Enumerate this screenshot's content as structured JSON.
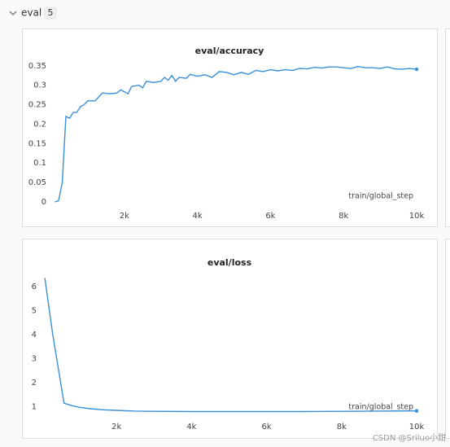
{
  "header": {
    "title": "eval",
    "count": 5
  },
  "watermark": "CSDN @Sriluo小甜",
  "chart_data": [
    {
      "type": "line",
      "title": "eval/accuracy",
      "x_label": "train/global_step",
      "color": "#3a8fd9",
      "grid": false,
      "x": [
        100,
        200,
        300,
        400,
        500,
        600,
        700,
        800,
        900,
        1000,
        1100,
        1200,
        1300,
        1400,
        1600,
        1800,
        1900,
        2100,
        2200,
        2400,
        2500,
        2600,
        2800,
        3000,
        3100,
        3200,
        3300,
        3400,
        3500,
        3700,
        3800,
        4000,
        4200,
        4400,
        4600,
        4800,
        5000,
        5200,
        5400,
        5600,
        5800,
        6000,
        6200,
        6400,
        6600,
        6800,
        7000,
        7200,
        7400,
        7600,
        7800,
        8000,
        8200,
        8400,
        8600,
        8800,
        9000,
        9200,
        9400,
        9600,
        9800,
        10000
      ],
      "values": [
        0,
        0.003,
        0.05,
        0.22,
        0.215,
        0.23,
        0.23,
        0.245,
        0.25,
        0.26,
        0.26,
        0.26,
        0.27,
        0.28,
        0.278,
        0.28,
        0.288,
        0.278,
        0.297,
        0.3,
        0.293,
        0.31,
        0.307,
        0.31,
        0.32,
        0.313,
        0.325,
        0.31,
        0.32,
        0.318,
        0.328,
        0.323,
        0.327,
        0.32,
        0.335,
        0.333,
        0.327,
        0.333,
        0.328,
        0.338,
        0.335,
        0.34,
        0.337,
        0.34,
        0.338,
        0.343,
        0.342,
        0.346,
        0.344,
        0.347,
        0.347,
        0.345,
        0.343,
        0.348,
        0.345,
        0.345,
        0.343,
        0.347,
        0.342,
        0.341,
        0.343,
        0.341
      ],
      "xlim": [
        0,
        10000
      ],
      "ylim": [
        0,
        0.36
      ],
      "xticks": [
        {
          "value": 2000,
          "label": "2k"
        },
        {
          "value": 4000,
          "label": "4k"
        },
        {
          "value": 6000,
          "label": "6k"
        },
        {
          "value": 8000,
          "label": "8k"
        },
        {
          "value": 10000,
          "label": "10k"
        }
      ],
      "yticks": [
        0,
        0.05,
        0.1,
        0.15,
        0.2,
        0.25,
        0.3,
        0.35
      ]
    },
    {
      "type": "line",
      "title": "eval/loss",
      "x_label": "train/global_step",
      "color": "#3a8fd9",
      "grid": false,
      "x": [
        90,
        300,
        600,
        800,
        1000,
        1300,
        1600,
        2000,
        2500,
        3000,
        4000,
        5000,
        6000,
        7000,
        8000,
        9000,
        10000
      ],
      "values": [
        6.35,
        4.0,
        1.15,
        1.05,
        0.98,
        0.92,
        0.88,
        0.85,
        0.82,
        0.81,
        0.8,
        0.8,
        0.8,
        0.8,
        0.81,
        0.82,
        0.83
      ],
      "xlim": [
        0,
        10000
      ],
      "ylim": [
        0.75,
        6.5
      ],
      "xticks": [
        {
          "value": 2000,
          "label": "2k"
        },
        {
          "value": 4000,
          "label": "4k"
        },
        {
          "value": 6000,
          "label": "6k"
        },
        {
          "value": 8000,
          "label": "8k"
        },
        {
          "value": 10000,
          "label": "10k"
        }
      ],
      "yticks": [
        1,
        2,
        3,
        4,
        5,
        6
      ]
    }
  ]
}
